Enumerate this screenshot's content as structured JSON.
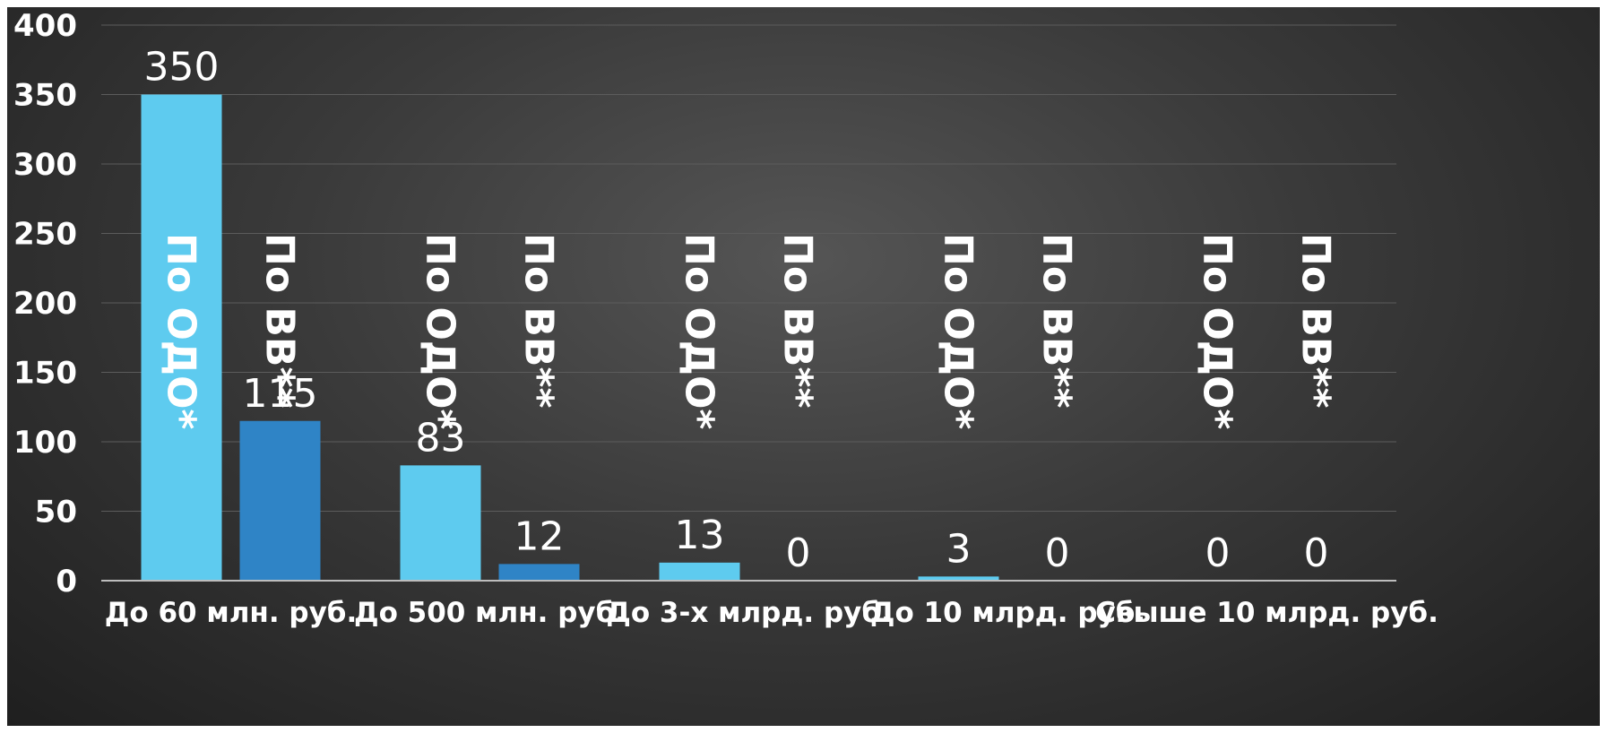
{
  "chart_data": {
    "type": "bar",
    "categories": [
      "До 60 млн. руб.",
      "До 500 млн. руб.",
      "До 3-х млрд. руб.",
      "До 10 млрд. руб.",
      "Свыше 10 млрд. руб."
    ],
    "series": [
      {
        "name": "По ОДО*",
        "values": [
          350,
          83,
          13,
          3,
          0
        ],
        "color": "#5ecbef"
      },
      {
        "name": "По ВВ**",
        "values": [
          115,
          12,
          0,
          0,
          0
        ],
        "color": "#2f84c6"
      }
    ],
    "title": "",
    "xlabel": "",
    "ylabel": "",
    "ylim": [
      0,
      400
    ],
    "yticks": [
      0,
      50,
      100,
      150,
      200,
      250,
      300,
      350,
      400
    ],
    "grid": true,
    "legend": "none",
    "series_labels_inside_plot": true,
    "data_labels": true
  },
  "colors": {
    "background": "#333333",
    "text": "#ffffff",
    "grid": "#5c5c5c",
    "axis": "#bdbdbd"
  }
}
